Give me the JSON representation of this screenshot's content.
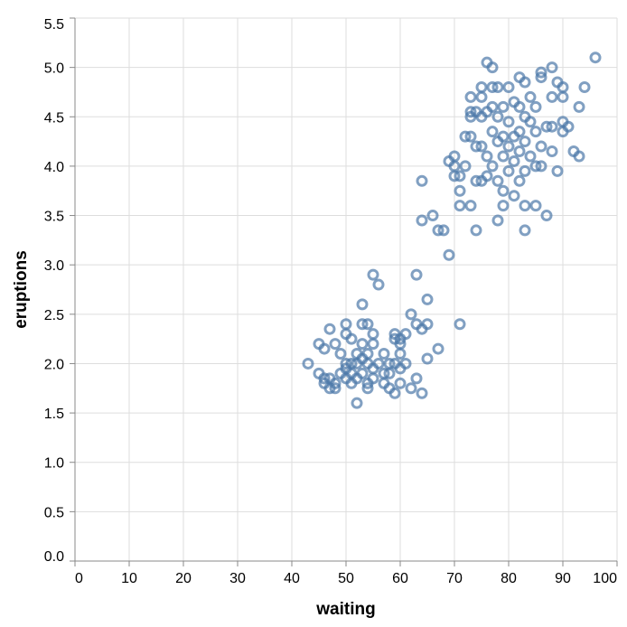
{
  "chart_data": {
    "type": "scatter",
    "xlabel": "waiting",
    "ylabel": "eruptions",
    "xlim": [
      0,
      100
    ],
    "ylim": [
      0,
      5.5
    ],
    "x_ticks": [
      "0",
      "10",
      "20",
      "30",
      "40",
      "50",
      "60",
      "70",
      "80",
      "90",
      "100"
    ],
    "y_ticks": [
      "0.0",
      "0.5",
      "1.0",
      "1.5",
      "2.0",
      "2.5",
      "3.0",
      "3.5",
      "4.0",
      "4.5",
      "5.0",
      "5.5"
    ],
    "grid": true,
    "marker": "open-circle",
    "color": "#4c78a8",
    "points": [
      [
        43,
        2.0
      ],
      [
        45,
        2.2
      ],
      [
        45,
        1.9
      ],
      [
        46,
        1.85
      ],
      [
        46,
        2.15
      ],
      [
        46,
        1.8
      ],
      [
        47,
        2.35
      ],
      [
        47,
        1.75
      ],
      [
        47,
        1.85
      ],
      [
        48,
        1.8
      ],
      [
        48,
        2.2
      ],
      [
        48,
        1.75
      ],
      [
        49,
        1.9
      ],
      [
        49,
        2.1
      ],
      [
        50,
        2.4
      ],
      [
        50,
        2.3
      ],
      [
        50,
        2.0
      ],
      [
        50,
        1.95
      ],
      [
        50,
        1.85
      ],
      [
        51,
        2.25
      ],
      [
        51,
        2.0
      ],
      [
        51,
        1.8
      ],
      [
        51,
        1.9
      ],
      [
        52,
        2.1
      ],
      [
        52,
        2.0
      ],
      [
        52,
        1.6
      ],
      [
        52,
        1.85
      ],
      [
        53,
        2.4
      ],
      [
        53,
        2.6
      ],
      [
        53,
        2.2
      ],
      [
        53,
        1.9
      ],
      [
        53,
        2.05
      ],
      [
        54,
        2.4
      ],
      [
        54,
        1.75
      ],
      [
        54,
        1.8
      ],
      [
        54,
        2.0
      ],
      [
        54,
        2.1
      ],
      [
        55,
        2.9
      ],
      [
        55,
        2.2
      ],
      [
        55,
        2.3
      ],
      [
        55,
        1.95
      ],
      [
        55,
        1.85
      ],
      [
        56,
        2.8
      ],
      [
        56,
        2.0
      ],
      [
        57,
        2.1
      ],
      [
        57,
        1.8
      ],
      [
        57,
        1.9
      ],
      [
        58,
        2.0
      ],
      [
        58,
        1.9
      ],
      [
        58,
        1.75
      ],
      [
        59,
        2.3
      ],
      [
        59,
        2.25
      ],
      [
        59,
        1.7
      ],
      [
        59,
        2.0
      ],
      [
        60,
        2.25
      ],
      [
        60,
        2.2
      ],
      [
        60,
        2.1
      ],
      [
        60,
        1.95
      ],
      [
        60,
        1.8
      ],
      [
        61,
        2.3
      ],
      [
        61,
        2.0
      ],
      [
        62,
        2.5
      ],
      [
        62,
        1.75
      ],
      [
        63,
        2.9
      ],
      [
        63,
        2.4
      ],
      [
        63,
        1.85
      ],
      [
        64,
        1.7
      ],
      [
        64,
        2.35
      ],
      [
        65,
        2.65
      ],
      [
        65,
        2.4
      ],
      [
        65,
        2.05
      ],
      [
        67,
        2.15
      ],
      [
        71,
        2.4
      ],
      [
        64,
        3.85
      ],
      [
        64,
        3.45
      ],
      [
        66,
        3.5
      ],
      [
        67,
        3.35
      ],
      [
        68,
        3.35
      ],
      [
        69,
        3.1
      ],
      [
        69,
        4.05
      ],
      [
        70,
        4.1
      ],
      [
        70,
        4.0
      ],
      [
        70,
        3.9
      ],
      [
        71,
        3.6
      ],
      [
        71,
        3.75
      ],
      [
        71,
        3.9
      ],
      [
        72,
        4.3
      ],
      [
        72,
        4.0
      ],
      [
        73,
        3.6
      ],
      [
        73,
        4.3
      ],
      [
        73,
        4.5
      ],
      [
        73,
        4.55
      ],
      [
        73,
        4.7
      ],
      [
        74,
        3.35
      ],
      [
        74,
        3.85
      ],
      [
        74,
        4.2
      ],
      [
        74,
        4.55
      ],
      [
        75,
        3.85
      ],
      [
        75,
        4.2
      ],
      [
        75,
        4.5
      ],
      [
        75,
        4.7
      ],
      [
        75,
        4.8
      ],
      [
        76,
        5.05
      ],
      [
        76,
        4.55
      ],
      [
        76,
        4.1
      ],
      [
        76,
        3.9
      ],
      [
        77,
        5.0
      ],
      [
        77,
        4.8
      ],
      [
        77,
        4.6
      ],
      [
        77,
        4.35
      ],
      [
        77,
        4.0
      ],
      [
        78,
        4.8
      ],
      [
        78,
        4.5
      ],
      [
        78,
        4.25
      ],
      [
        78,
        3.85
      ],
      [
        78,
        3.45
      ],
      [
        79,
        4.6
      ],
      [
        79,
        4.3
      ],
      [
        79,
        4.1
      ],
      [
        79,
        3.75
      ],
      [
        79,
        3.6
      ],
      [
        80,
        4.8
      ],
      [
        80,
        4.45
      ],
      [
        80,
        4.2
      ],
      [
        80,
        3.95
      ],
      [
        81,
        4.65
      ],
      [
        81,
        4.3
      ],
      [
        81,
        4.05
      ],
      [
        81,
        3.7
      ],
      [
        82,
        4.9
      ],
      [
        82,
        4.6
      ],
      [
        82,
        4.35
      ],
      [
        82,
        4.15
      ],
      [
        82,
        3.85
      ],
      [
        83,
        4.85
      ],
      [
        83,
        4.5
      ],
      [
        83,
        4.25
      ],
      [
        83,
        3.95
      ],
      [
        83,
        3.6
      ],
      [
        83,
        3.35
      ],
      [
        84,
        4.7
      ],
      [
        84,
        4.45
      ],
      [
        84,
        4.1
      ],
      [
        85,
        4.6
      ],
      [
        85,
        4.35
      ],
      [
        85,
        4.0
      ],
      [
        85,
        3.6
      ],
      [
        86,
        4.95
      ],
      [
        86,
        4.9
      ],
      [
        86,
        4.2
      ],
      [
        86,
        4.0
      ],
      [
        87,
        4.4
      ],
      [
        87,
        3.5
      ],
      [
        88,
        5.0
      ],
      [
        88,
        4.7
      ],
      [
        88,
        4.4
      ],
      [
        88,
        4.15
      ],
      [
        89,
        3.95
      ],
      [
        89,
        4.85
      ],
      [
        90,
        4.45
      ],
      [
        90,
        4.35
      ],
      [
        90,
        4.7
      ],
      [
        90,
        4.8
      ],
      [
        91,
        4.4
      ],
      [
        92,
        4.15
      ],
      [
        93,
        4.6
      ],
      [
        93,
        4.1
      ],
      [
        94,
        4.8
      ],
      [
        96,
        5.1
      ]
    ]
  }
}
